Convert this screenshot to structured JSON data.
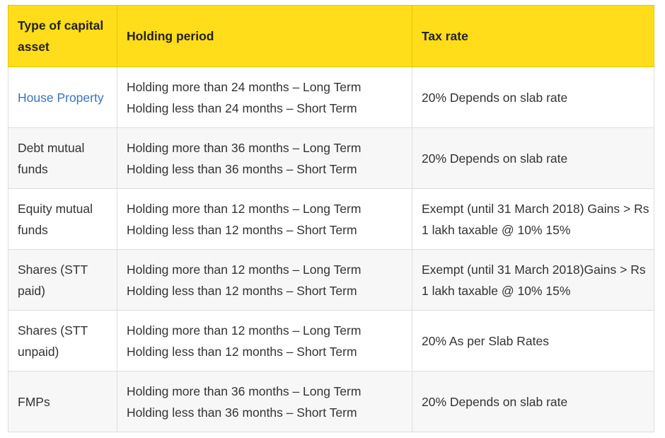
{
  "table": {
    "headers": [
      "Type of capital asset",
      "Holding period",
      "Tax rate"
    ],
    "rows": [
      {
        "asset": "House Property",
        "asset_is_link": true,
        "holding_long": "Holding more than 24 months – Long Term",
        "holding_short": "Holding less than 24 months – Short Term",
        "tax_rate": "20% Depends on slab rate"
      },
      {
        "asset": "Debt mutual funds",
        "asset_is_link": false,
        "holding_long": "Holding more than 36 months – Long Term",
        "holding_short": "Holding less than 36 months – Short Term",
        "tax_rate": "20% Depends on slab rate"
      },
      {
        "asset": "Equity mutual funds",
        "asset_is_link": false,
        "holding_long": "Holding more than 12 months – Long Term",
        "holding_short": "Holding less than 12 months – Short Term",
        "tax_rate": "Exempt (until 31 March 2018) Gains > Rs 1 lakh taxable @ 10% 15%"
      },
      {
        "asset": "Shares (STT paid)",
        "asset_is_link": false,
        "holding_long": "Holding more than 12 months – Long Term",
        "holding_short": "Holding less than 12 months – Short Term",
        "tax_rate": "Exempt (until 31 March 2018)Gains > Rs 1 lakh taxable @ 10% 15%"
      },
      {
        "asset": "Shares (STT unpaid)",
        "asset_is_link": false,
        "holding_long": "Holding more than 12 months – Long Term",
        "holding_short": "Holding less than 12 months – Short Term",
        "tax_rate": "20% As per Slab Rates"
      },
      {
        "asset": "FMPs",
        "asset_is_link": false,
        "holding_long": "Holding more than 36 months – Long Term",
        "holding_short": "Holding less than 36 months – Short Term",
        "tax_rate": "20% Depends on slab rate"
      }
    ]
  },
  "colors": {
    "header_bg": "#ffdd1a",
    "link": "#3a73b8",
    "row_alt_bg": "#f7f7f7",
    "border": "#dedede"
  }
}
